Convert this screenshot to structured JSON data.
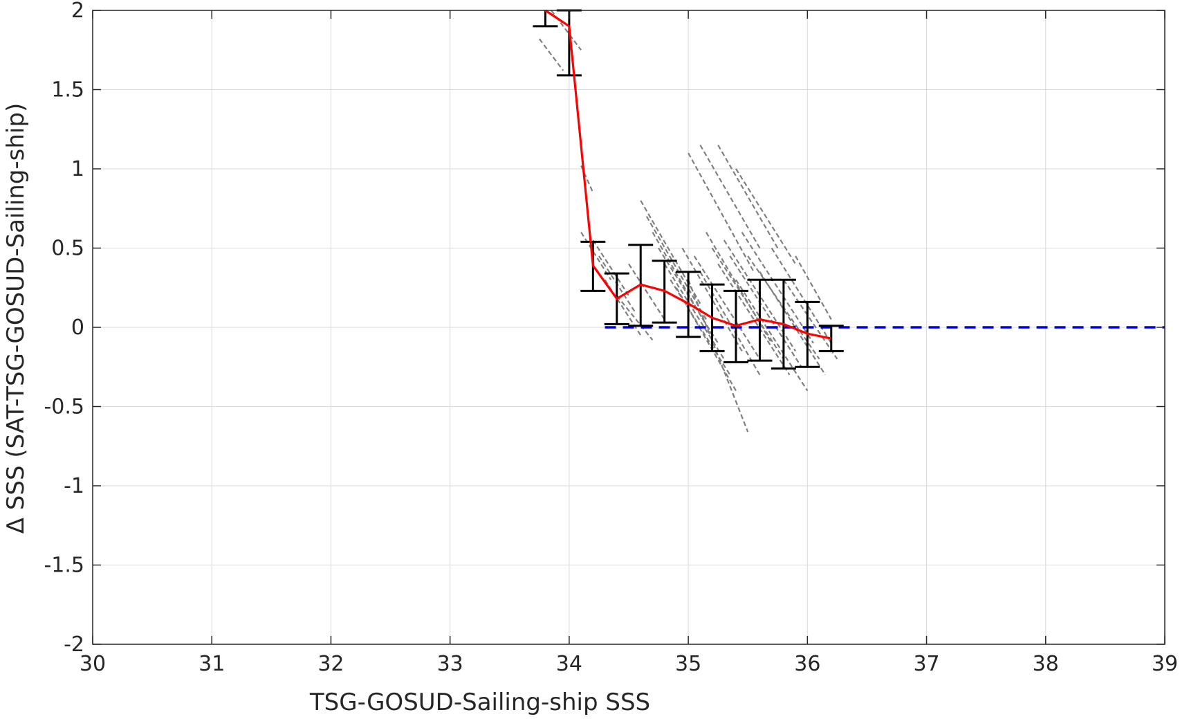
{
  "chart_data": {
    "type": "scatter",
    "title": "",
    "xlabel": "TSG-GOSUD-Sailing-ship SSS",
    "ylabel": "Δ SSS (SAT-TSG-GOSUD-Sailing-ship)",
    "xlim": [
      30,
      39
    ],
    "ylim": [
      -2,
      2
    ],
    "xticks": [
      30,
      31,
      32,
      33,
      34,
      35,
      36,
      37,
      38,
      39
    ],
    "yticks": [
      -2,
      -1.5,
      -1,
      -0.5,
      0,
      0.5,
      1,
      1.5,
      2
    ],
    "grid": true,
    "legend": "none",
    "colors": {
      "scatter": "#808080",
      "mean_line": "#ff0000",
      "zero_line": "#0000dd",
      "error_bars": "#000000",
      "grid": "#d9d9d9",
      "axes": "#262626"
    },
    "series": [
      {
        "kind": "binned-mean-line",
        "x": [
          33.8,
          34.0,
          34.2,
          34.4,
          34.6,
          34.8,
          35.0,
          35.2,
          35.4,
          35.6,
          35.8,
          36.0,
          36.2
        ],
        "y": [
          2.0,
          1.9,
          0.39,
          0.18,
          0.27,
          0.23,
          0.15,
          0.06,
          0.01,
          0.05,
          0.02,
          -0.04,
          -0.07
        ],
        "err_low": [
          1.9,
          1.59,
          0.23,
          0.02,
          0.01,
          0.03,
          -0.06,
          -0.15,
          -0.22,
          -0.21,
          -0.26,
          -0.25,
          -0.15
        ],
        "err_high": [
          2.1,
          2.0,
          0.54,
          0.34,
          0.52,
          0.42,
          0.35,
          0.27,
          0.23,
          0.3,
          0.3,
          0.16,
          0.01
        ]
      },
      {
        "kind": "zero-reference-line",
        "x": [
          34.3,
          39
        ],
        "y": [
          0,
          0
        ]
      },
      {
        "kind": "scatter-streaks",
        "segments": [
          {
            "x0": 33.75,
            "y0": 1.82,
            "x1": 33.95,
            "y1": 1.62
          },
          {
            "x0": 33.85,
            "y0": 2.0,
            "x1": 34.1,
            "y1": 1.75
          },
          {
            "x0": 34.1,
            "y0": 1.02,
            "x1": 34.2,
            "y1": 0.85
          },
          {
            "x0": 34.1,
            "y0": 0.6,
            "x1": 34.35,
            "y1": 0.3
          },
          {
            "x0": 34.2,
            "y0": 0.55,
            "x1": 34.5,
            "y1": 0.2
          },
          {
            "x0": 34.25,
            "y0": 0.45,
            "x1": 34.55,
            "y1": 0.1
          },
          {
            "x0": 34.3,
            "y0": 0.3,
            "x1": 34.6,
            "y1": -0.05
          },
          {
            "x0": 34.4,
            "y0": 0.2,
            "x1": 34.7,
            "y1": -0.08
          },
          {
            "x0": 34.5,
            "y0": 0.4,
            "x1": 34.8,
            "y1": 0.05
          },
          {
            "x0": 34.6,
            "y0": 0.8,
            "x1": 35.1,
            "y1": 0.15
          },
          {
            "x0": 34.65,
            "y0": 0.7,
            "x1": 35.15,
            "y1": 0.05
          },
          {
            "x0": 34.7,
            "y0": 0.6,
            "x1": 35.2,
            "y1": -0.05
          },
          {
            "x0": 34.75,
            "y0": 0.5,
            "x1": 35.25,
            "y1": -0.1
          },
          {
            "x0": 34.8,
            "y0": 0.4,
            "x1": 35.3,
            "y1": -0.2
          },
          {
            "x0": 34.85,
            "y0": 0.3,
            "x1": 35.35,
            "y1": -0.3
          },
          {
            "x0": 34.9,
            "y0": 0.25,
            "x1": 35.4,
            "y1": -0.4
          },
          {
            "x0": 34.95,
            "y0": 0.5,
            "x1": 35.45,
            "y1": -0.15
          },
          {
            "x0": 35.0,
            "y0": 0.3,
            "x1": 35.5,
            "y1": -0.66
          },
          {
            "x0": 35.05,
            "y0": 0.45,
            "x1": 35.6,
            "y1": -0.2
          },
          {
            "x0": 35.1,
            "y0": 0.35,
            "x1": 35.6,
            "y1": -0.3
          },
          {
            "x0": 35.15,
            "y0": 0.6,
            "x1": 35.7,
            "y1": -0.1
          },
          {
            "x0": 35.2,
            "y0": 0.5,
            "x1": 35.8,
            "y1": -0.2
          },
          {
            "x0": 35.25,
            "y0": 0.4,
            "x1": 35.85,
            "y1": -0.3
          },
          {
            "x0": 35.3,
            "y0": 0.55,
            "x1": 35.9,
            "y1": -0.15
          },
          {
            "x0": 35.35,
            "y0": 0.45,
            "x1": 35.95,
            "y1": -0.25
          },
          {
            "x0": 35.4,
            "y0": 0.3,
            "x1": 36.0,
            "y1": -0.4
          },
          {
            "x0": 35.45,
            "y0": 0.6,
            "x1": 36.05,
            "y1": -0.1
          },
          {
            "x0": 35.5,
            "y0": 0.45,
            "x1": 36.1,
            "y1": -0.2
          },
          {
            "x0": 35.6,
            "y0": 0.35,
            "x1": 36.15,
            "y1": -0.3
          },
          {
            "x0": 35.7,
            "y0": 0.5,
            "x1": 36.2,
            "y1": -0.1
          },
          {
            "x0": 35.8,
            "y0": 0.3,
            "x1": 36.25,
            "y1": -0.2
          },
          {
            "x0": 35.9,
            "y0": 0.45,
            "x1": 36.2,
            "y1": 0.05
          },
          {
            "x0": 35.0,
            "y0": 1.1,
            "x1": 35.55,
            "y1": 0.35
          },
          {
            "x0": 35.1,
            "y0": 1.15,
            "x1": 35.6,
            "y1": 0.5
          },
          {
            "x0": 35.25,
            "y0": 1.15,
            "x1": 35.75,
            "y1": 0.5
          },
          {
            "x0": 35.4,
            "y0": 1.0,
            "x1": 35.9,
            "y1": 0.4
          }
        ]
      }
    ]
  }
}
